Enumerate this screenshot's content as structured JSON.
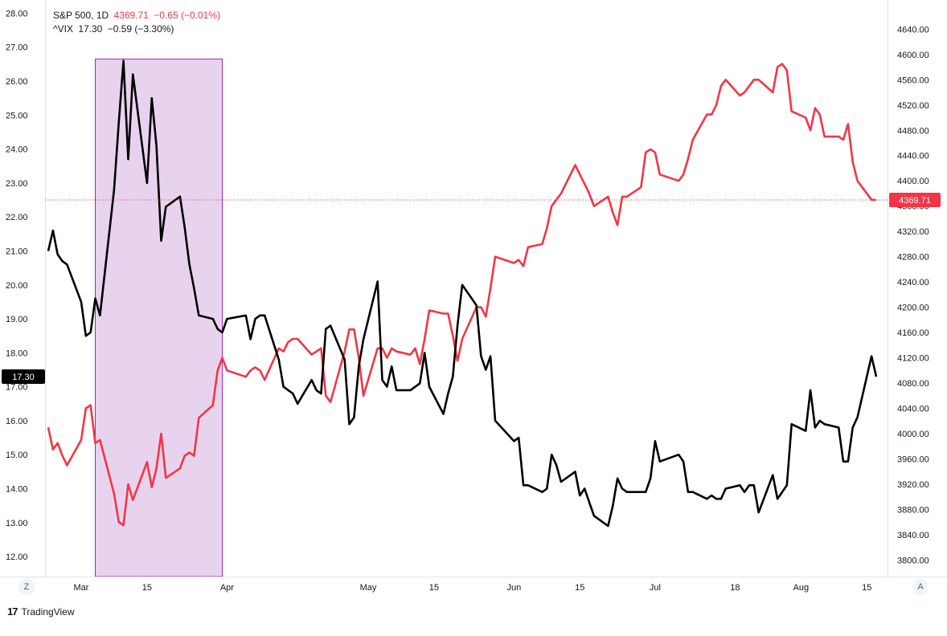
{
  "legend": {
    "sp_symbol": "S&P 500, 1D",
    "sp_price": "4369.71",
    "sp_change": "−0.65 (−0.01%)",
    "vix_symbol": "^VIX",
    "vix_price": "17.30",
    "vix_change": "−0.59 (−3.30%)"
  },
  "left_badge": "17.30",
  "right_badge": "4369.71",
  "buttons": {
    "left": "Z",
    "right": "A"
  },
  "branding": {
    "mark": "17",
    "name": "TradingView"
  },
  "colors": {
    "sp500": "#f23645",
    "vix": "#000000",
    "highlight_fill": "#e8d3ef",
    "highlight_stroke": "#9c27b0"
  },
  "chart_data": {
    "type": "line",
    "highlight": {
      "from": "2021-03-04",
      "to": "2021-03-31"
    },
    "x_tick_labels": [
      {
        "date": "2021-03-01",
        "label": "Mar"
      },
      {
        "date": "2021-03-15",
        "label": "15"
      },
      {
        "date": "2021-04-01",
        "label": "Apr"
      },
      {
        "date": "2021-05-01",
        "label": "May"
      },
      {
        "date": "2021-05-15",
        "label": "15"
      },
      {
        "date": "2021-06-01",
        "label": "Jun"
      },
      {
        "date": "2021-06-15",
        "label": "15"
      },
      {
        "date": "2021-07-01",
        "label": "Jul"
      },
      {
        "date": "2021-07-18",
        "label": "18"
      },
      {
        "date": "2021-08-01",
        "label": "Aug"
      },
      {
        "date": "2021-08-15",
        "label": "15"
      }
    ],
    "left_axis": {
      "ylim": [
        11.6,
        28.2
      ],
      "ticks": [
        "12.00",
        "13.00",
        "14.00",
        "15.00",
        "16.00",
        "17.00",
        "18.00",
        "19.00",
        "20.00",
        "21.00",
        "22.00",
        "23.00",
        "24.00",
        "25.00",
        "26.00",
        "27.00",
        "28.00"
      ]
    },
    "right_axis": {
      "ylim": [
        3784,
        4676
      ],
      "ticks": [
        "3800.00",
        "3840.00",
        "3880.00",
        "3920.00",
        "3960.00",
        "4000.00",
        "4040.00",
        "4080.00",
        "4120.00",
        "4160.00",
        "4200.00",
        "4240.00",
        "4280.00",
        "4320.00",
        "4360.00",
        "4400.00",
        "4440.00",
        "4480.00",
        "4520.00",
        "4560.00",
        "4600.00",
        "4640.00"
      ]
    },
    "series": [
      {
        "name": "S&P 500",
        "axis": "right",
        "color": "#f23645",
        "points": [
          [
            "2021-02-22",
            4010
          ],
          [
            "2021-02-23",
            3975
          ],
          [
            "2021-02-24",
            3985
          ],
          [
            "2021-02-25",
            3965
          ],
          [
            "2021-02-26",
            3950
          ],
          [
            "2021-03-01",
            3990
          ],
          [
            "2021-03-02",
            4040
          ],
          [
            "2021-03-03",
            4045
          ],
          [
            "2021-03-04",
            3985
          ],
          [
            "2021-03-05",
            3990
          ],
          [
            "2021-03-08",
            3905
          ],
          [
            "2021-03-09",
            3860
          ],
          [
            "2021-03-10",
            3855
          ],
          [
            "2021-03-11",
            3920
          ],
          [
            "2021-03-12",
            3895
          ],
          [
            "2021-03-15",
            3955
          ],
          [
            "2021-03-16",
            3915
          ],
          [
            "2021-03-17",
            3945
          ],
          [
            "2021-03-18",
            4000
          ],
          [
            "2021-03-19",
            3930
          ],
          [
            "2021-03-22",
            3945
          ],
          [
            "2021-03-23",
            3965
          ],
          [
            "2021-03-24",
            3970
          ],
          [
            "2021-03-25",
            3965
          ],
          [
            "2021-03-26",
            4025
          ],
          [
            "2021-03-29",
            4045
          ],
          [
            "2021-03-30",
            4100
          ],
          [
            "2021-03-31",
            4120
          ],
          [
            "2021-04-01",
            4100
          ],
          [
            "2021-04-05",
            4090
          ],
          [
            "2021-04-06",
            4100
          ],
          [
            "2021-04-07",
            4105
          ],
          [
            "2021-04-08",
            4100
          ],
          [
            "2021-04-09",
            4085
          ],
          [
            "2021-04-12",
            4135
          ],
          [
            "2021-04-13",
            4130
          ],
          [
            "2021-04-14",
            4145
          ],
          [
            "2021-04-15",
            4150
          ],
          [
            "2021-04-16",
            4150
          ],
          [
            "2021-04-19",
            4125
          ],
          [
            "2021-04-20",
            4130
          ],
          [
            "2021-04-21",
            4135
          ],
          [
            "2021-04-22",
            4060
          ],
          [
            "2021-04-23",
            4050
          ],
          [
            "2021-04-26",
            4130
          ],
          [
            "2021-04-27",
            4165
          ],
          [
            "2021-04-28",
            4165
          ],
          [
            "2021-04-29",
            4120
          ],
          [
            "2021-04-30",
            4060
          ],
          [
            "2021-05-03",
            4135
          ],
          [
            "2021-05-04",
            4135
          ],
          [
            "2021-05-05",
            4120
          ],
          [
            "2021-05-06",
            4135
          ],
          [
            "2021-05-07",
            4130
          ],
          [
            "2021-05-10",
            4125
          ],
          [
            "2021-05-11",
            4135
          ],
          [
            "2021-05-12",
            4110
          ],
          [
            "2021-05-13",
            4150
          ],
          [
            "2021-05-14",
            4195
          ],
          [
            "2021-05-17",
            4190
          ],
          [
            "2021-05-18",
            4190
          ],
          [
            "2021-05-19",
            4155
          ],
          [
            "2021-05-20",
            4115
          ],
          [
            "2021-05-21",
            4150
          ],
          [
            "2021-05-24",
            4200
          ],
          [
            "2021-05-25",
            4200
          ],
          [
            "2021-05-26",
            4185
          ],
          [
            "2021-05-27",
            4230
          ],
          [
            "2021-05-28",
            4280
          ],
          [
            "2021-06-01",
            4270
          ],
          [
            "2021-06-02",
            4275
          ],
          [
            "2021-06-03",
            4265
          ],
          [
            "2021-06-04",
            4295
          ],
          [
            "2021-06-07",
            4300
          ],
          [
            "2021-06-08",
            4325
          ],
          [
            "2021-06-09",
            4360
          ],
          [
            "2021-06-10",
            4370
          ],
          [
            "2021-06-11",
            4380
          ],
          [
            "2021-06-14",
            4425
          ],
          [
            "2021-06-15",
            4410
          ],
          [
            "2021-06-16",
            4395
          ],
          [
            "2021-06-17",
            4380
          ],
          [
            "2021-06-18",
            4360
          ],
          [
            "2021-06-21",
            4375
          ],
          [
            "2021-06-22",
            4350
          ],
          [
            "2021-06-23",
            4330
          ],
          [
            "2021-06-24",
            4375
          ],
          [
            "2021-06-25",
            4375
          ],
          [
            "2021-06-28",
            4390
          ],
          [
            "2021-06-29",
            4445
          ],
          [
            "2021-06-30",
            4450
          ],
          [
            "2021-07-01",
            4445
          ],
          [
            "2021-07-02",
            4410
          ],
          [
            "2021-07-06",
            4400
          ],
          [
            "2021-07-07",
            4410
          ],
          [
            "2021-07-08",
            4435
          ],
          [
            "2021-07-09",
            4465
          ],
          [
            "2021-07-12",
            4505
          ],
          [
            "2021-07-13",
            4505
          ],
          [
            "2021-07-14",
            4520
          ],
          [
            "2021-07-15",
            4550
          ],
          [
            "2021-07-16",
            4560
          ],
          [
            "2021-07-19",
            4535
          ],
          [
            "2021-07-20",
            4540
          ],
          [
            "2021-07-21",
            4550
          ],
          [
            "2021-07-22",
            4560
          ],
          [
            "2021-07-23",
            4560
          ],
          [
            "2021-07-26",
            4540
          ],
          [
            "2021-07-27",
            4580
          ],
          [
            "2021-07-28",
            4585
          ],
          [
            "2021-07-29",
            4575
          ],
          [
            "2021-07-30",
            4510
          ],
          [
            "2021-08-02",
            4500
          ],
          [
            "2021-08-03",
            4480
          ],
          [
            "2021-08-04",
            4515
          ],
          [
            "2021-08-05",
            4505
          ],
          [
            "2021-08-06",
            4470
          ],
          [
            "2021-08-09",
            4470
          ],
          [
            "2021-08-10",
            4465
          ],
          [
            "2021-08-11",
            4490
          ],
          [
            "2021-08-12",
            4430
          ],
          [
            "2021-08-13",
            4400
          ],
          [
            "2021-08-16",
            4370
          ],
          [
            "2021-08-17",
            4369.71
          ]
        ]
      },
      {
        "name": "^VIX",
        "axis": "left",
        "color": "#000000",
        "points": [
          [
            "2021-02-22",
            21.0
          ],
          [
            "2021-02-23",
            21.6
          ],
          [
            "2021-02-24",
            20.9
          ],
          [
            "2021-02-25",
            20.7
          ],
          [
            "2021-02-26",
            20.6
          ],
          [
            "2021-03-01",
            19.5
          ],
          [
            "2021-03-02",
            18.5
          ],
          [
            "2021-03-03",
            18.6
          ],
          [
            "2021-03-04",
            19.6
          ],
          [
            "2021-03-05",
            19.1
          ],
          [
            "2021-03-08",
            22.8
          ],
          [
            "2021-03-09",
            24.8
          ],
          [
            "2021-03-10",
            26.6
          ],
          [
            "2021-03-11",
            23.7
          ],
          [
            "2021-03-12",
            26.2
          ],
          [
            "2021-03-15",
            23.0
          ],
          [
            "2021-03-16",
            25.5
          ],
          [
            "2021-03-17",
            24.1
          ],
          [
            "2021-03-18",
            21.3
          ],
          [
            "2021-03-19",
            22.3
          ],
          [
            "2021-03-22",
            22.6
          ],
          [
            "2021-03-23",
            21.7
          ],
          [
            "2021-03-24",
            20.6
          ],
          [
            "2021-03-25",
            19.9
          ],
          [
            "2021-03-26",
            19.1
          ],
          [
            "2021-03-29",
            19.0
          ],
          [
            "2021-03-30",
            18.7
          ],
          [
            "2021-03-31",
            18.6
          ],
          [
            "2021-04-01",
            19.0
          ],
          [
            "2021-04-05",
            19.1
          ],
          [
            "2021-04-06",
            18.4
          ],
          [
            "2021-04-07",
            19.0
          ],
          [
            "2021-04-08",
            19.1
          ],
          [
            "2021-04-09",
            19.1
          ],
          [
            "2021-04-12",
            17.8
          ],
          [
            "2021-04-13",
            17.0
          ],
          [
            "2021-04-14",
            16.9
          ],
          [
            "2021-04-15",
            16.8
          ],
          [
            "2021-04-16",
            16.5
          ],
          [
            "2021-04-19",
            17.2
          ],
          [
            "2021-04-20",
            16.9
          ],
          [
            "2021-04-21",
            16.8
          ],
          [
            "2021-04-22",
            18.7
          ],
          [
            "2021-04-23",
            18.8
          ],
          [
            "2021-04-26",
            17.8
          ],
          [
            "2021-04-27",
            15.9
          ],
          [
            "2021-04-28",
            16.1
          ],
          [
            "2021-04-29",
            17.6
          ],
          [
            "2021-04-30",
            18.4
          ],
          [
            "2021-05-03",
            20.1
          ],
          [
            "2021-05-04",
            17.2
          ],
          [
            "2021-05-05",
            17.0
          ],
          [
            "2021-05-06",
            17.6
          ],
          [
            "2021-05-07",
            16.9
          ],
          [
            "2021-05-10",
            16.9
          ],
          [
            "2021-05-11",
            17.0
          ],
          [
            "2021-05-12",
            17.1
          ],
          [
            "2021-05-13",
            18.0
          ],
          [
            "2021-05-14",
            17.0
          ],
          [
            "2021-05-17",
            16.2
          ],
          [
            "2021-05-18",
            16.8
          ],
          [
            "2021-05-19",
            17.3
          ],
          [
            "2021-05-20",
            18.8
          ],
          [
            "2021-05-21",
            20.0
          ],
          [
            "2021-05-24",
            19.4
          ],
          [
            "2021-05-25",
            17.9
          ],
          [
            "2021-05-26",
            17.5
          ],
          [
            "2021-05-27",
            17.9
          ],
          [
            "2021-05-28",
            16.0
          ],
          [
            "2021-06-01",
            15.4
          ],
          [
            "2021-06-02",
            15.5
          ],
          [
            "2021-06-03",
            14.1
          ],
          [
            "2021-06-04",
            14.1
          ],
          [
            "2021-06-07",
            13.9
          ],
          [
            "2021-06-08",
            14.0
          ],
          [
            "2021-06-09",
            15.0
          ],
          [
            "2021-06-10",
            14.7
          ],
          [
            "2021-06-11",
            14.2
          ],
          [
            "2021-06-14",
            14.5
          ],
          [
            "2021-06-15",
            13.8
          ],
          [
            "2021-06-16",
            14.0
          ],
          [
            "2021-06-17",
            13.6
          ],
          [
            "2021-06-18",
            13.2
          ],
          [
            "2021-06-21",
            12.9
          ],
          [
            "2021-06-22",
            13.5
          ],
          [
            "2021-06-23",
            14.3
          ],
          [
            "2021-06-24",
            14.0
          ],
          [
            "2021-06-25",
            13.9
          ],
          [
            "2021-06-28",
            13.9
          ],
          [
            "2021-06-29",
            13.9
          ],
          [
            "2021-06-30",
            14.3
          ],
          [
            "2021-07-01",
            15.4
          ],
          [
            "2021-07-02",
            14.8
          ],
          [
            "2021-07-06",
            15.0
          ],
          [
            "2021-07-07",
            14.8
          ],
          [
            "2021-07-08",
            13.9
          ],
          [
            "2021-07-09",
            13.9
          ],
          [
            "2021-07-12",
            13.7
          ],
          [
            "2021-07-13",
            13.8
          ],
          [
            "2021-07-14",
            13.7
          ],
          [
            "2021-07-15",
            13.7
          ],
          [
            "2021-07-16",
            14.0
          ],
          [
            "2021-07-19",
            14.1
          ],
          [
            "2021-07-20",
            13.9
          ],
          [
            "2021-07-21",
            14.1
          ],
          [
            "2021-07-22",
            14.1
          ],
          [
            "2021-07-23",
            13.3
          ],
          [
            "2021-07-26",
            14.4
          ],
          [
            "2021-07-27",
            13.7
          ],
          [
            "2021-07-28",
            13.9
          ],
          [
            "2021-07-29",
            14.1
          ],
          [
            "2021-07-30",
            15.9
          ],
          [
            "2021-08-02",
            15.7
          ],
          [
            "2021-08-03",
            16.9
          ],
          [
            "2021-08-04",
            15.8
          ],
          [
            "2021-08-05",
            16.0
          ],
          [
            "2021-08-06",
            15.9
          ],
          [
            "2021-08-09",
            15.8
          ],
          [
            "2021-08-10",
            14.8
          ],
          [
            "2021-08-11",
            14.8
          ],
          [
            "2021-08-12",
            15.8
          ],
          [
            "2021-08-13",
            16.1
          ],
          [
            "2021-08-16",
            17.9
          ],
          [
            "2021-08-17",
            17.3
          ]
        ]
      }
    ]
  }
}
